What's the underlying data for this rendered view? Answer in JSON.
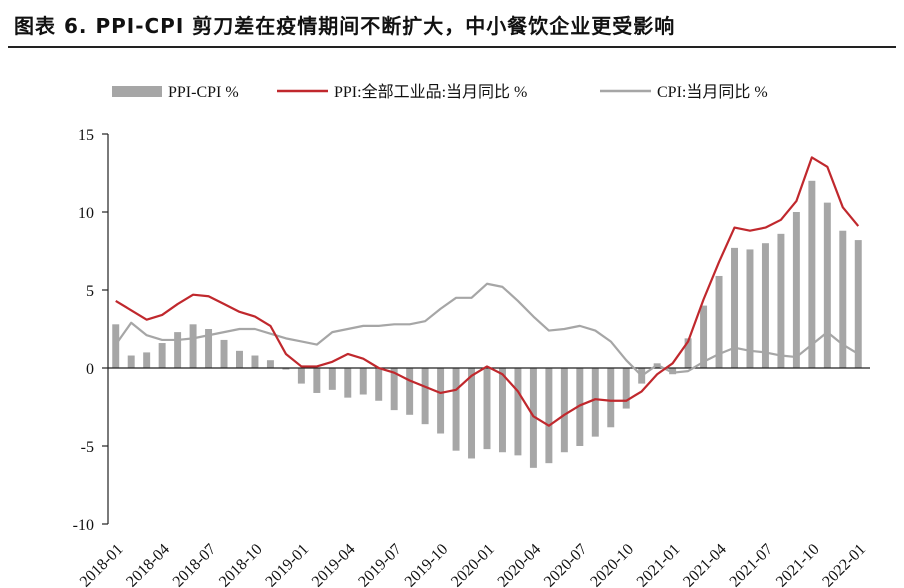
{
  "title": "图表 6.  PPI-CPI 剪刀差在疫情期间不断扩大，中小餐饮企业更受影响",
  "colors": {
    "bar": "#a6a6a6",
    "ppi": "#c0282d",
    "cpi": "#a6a6a6",
    "axis": "#222222"
  },
  "chart_data": {
    "type": "bar+line",
    "title": "图表 6.  PPI-CPI 剪刀差在疫情期间不断扩大，中小餐饮企业更受影响",
    "ylim": [
      -10,
      15
    ],
    "yticks": [
      -10,
      -5,
      0,
      5,
      10,
      15
    ],
    "xtick_labels": [
      "2018-01",
      "2018-04",
      "2018-07",
      "2018-10",
      "2019-01",
      "2019-04",
      "2019-07",
      "2019-10",
      "2020-01",
      "2020-04",
      "2020-07",
      "2020-10",
      "2021-01",
      "2021-04",
      "2021-07",
      "2021-10",
      "2022-01"
    ],
    "xtick_every": 3,
    "legend": {
      "position": "top",
      "entries": [
        "PPI-CPI %",
        "PPI:全部工业品:当月同比 %",
        "CPI:当月同比 %"
      ]
    },
    "series": [
      {
        "name": "PPI-CPI %",
        "type": "bar",
        "values": [
          2.8,
          0.8,
          1.0,
          1.6,
          2.3,
          2.8,
          2.5,
          1.8,
          1.1,
          0.8,
          0.5,
          -0.1,
          -1.0,
          -1.6,
          -1.4,
          -1.9,
          -1.7,
          -2.1,
          -2.7,
          -3.0,
          -3.6,
          -4.2,
          -5.3,
          -5.8,
          -5.2,
          -5.4,
          -5.6,
          -6.4,
          -6.1,
          -5.4,
          -5.0,
          -4.4,
          -3.8,
          -2.6,
          -1.0,
          0.3,
          -0.4,
          1.9,
          4.0,
          5.9,
          7.7,
          7.6,
          8.0,
          8.6,
          10.0,
          12.0,
          10.6,
          8.8,
          8.2
        ]
      },
      {
        "name": "PPI:全部工业品:当月同比 %",
        "type": "line",
        "values": [
          4.3,
          3.7,
          3.1,
          3.4,
          4.1,
          4.7,
          4.6,
          4.1,
          3.6,
          3.3,
          2.7,
          0.9,
          0.1,
          0.1,
          0.4,
          0.9,
          0.6,
          0.0,
          -0.3,
          -0.8,
          -1.2,
          -1.6,
          -1.4,
          -0.5,
          0.1,
          -0.4,
          -1.5,
          -3.1,
          -3.7,
          -3.0,
          -2.4,
          -2.0,
          -2.1,
          -2.1,
          -1.5,
          -0.4,
          0.3,
          1.7,
          4.4,
          6.8,
          9.0,
          8.8,
          9.0,
          9.5,
          10.7,
          13.5,
          12.9,
          10.3,
          9.1
        ]
      },
      {
        "name": "CPI:当月同比 %",
        "type": "line",
        "values": [
          1.5,
          2.9,
          2.1,
          1.8,
          1.8,
          1.9,
          2.1,
          2.3,
          2.5,
          2.5,
          2.2,
          1.9,
          1.7,
          1.5,
          2.3,
          2.5,
          2.7,
          2.7,
          2.8,
          2.8,
          3.0,
          3.8,
          4.5,
          4.5,
          5.4,
          5.2,
          4.3,
          3.3,
          2.4,
          2.5,
          2.7,
          2.4,
          1.7,
          0.5,
          -0.5,
          0.2,
          -0.3,
          -0.2,
          0.4,
          0.9,
          1.3,
          1.1,
          1.0,
          0.8,
          0.7,
          1.5,
          2.3,
          1.5,
          0.9
        ]
      }
    ]
  }
}
